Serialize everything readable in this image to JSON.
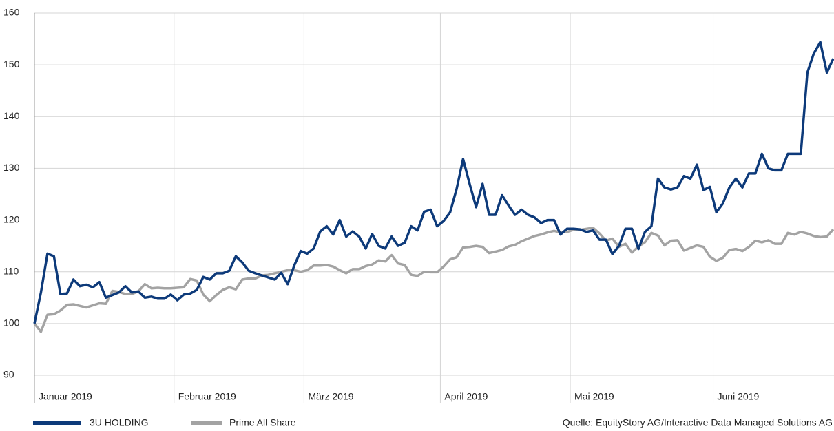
{
  "chart_data": {
    "type": "line",
    "categories": [
      "Januar 2019",
      null,
      null,
      null,
      null,
      null,
      null,
      null,
      null,
      null,
      null,
      null,
      null,
      null,
      null,
      null,
      null,
      null,
      null,
      null,
      null,
      null,
      "Februar 2019",
      null,
      null,
      null,
      null,
      null,
      null,
      null,
      null,
      null,
      null,
      null,
      null,
      null,
      null,
      null,
      null,
      null,
      null,
      null,
      "März 2019",
      null,
      null,
      null,
      null,
      null,
      null,
      null,
      null,
      null,
      null,
      null,
      null,
      null,
      null,
      null,
      null,
      null,
      null,
      null,
      null,
      "April 2019",
      null,
      null,
      null,
      null,
      null,
      null,
      null,
      null,
      null,
      null,
      null,
      null,
      null,
      null,
      null,
      null,
      null,
      null,
      null,
      "Mai 2019",
      null,
      null,
      null,
      null,
      null,
      null,
      null,
      null,
      null,
      null,
      null,
      null,
      null,
      null,
      null,
      null,
      null,
      null,
      null,
      null,
      null,
      "Juni 2019",
      null,
      null,
      null,
      null,
      null,
      null,
      null,
      null,
      null,
      null,
      null,
      null,
      null,
      null,
      null,
      null,
      null,
      null
    ],
    "series": [
      {
        "name": "3U HOLDING",
        "color": "#0d3a7a",
        "values": [
          100,
          106,
          113.5,
          113,
          105.7,
          105.8,
          108.5,
          107.2,
          107.5,
          107,
          108,
          105,
          105.5,
          106,
          107.2,
          106,
          106.2,
          105,
          105.2,
          104.8,
          104.8,
          105.6,
          104.5,
          105.6,
          105.8,
          106.5,
          109,
          108.5,
          109.7,
          109.7,
          110.2,
          113,
          111.8,
          110.2,
          109.7,
          109.3,
          108.9,
          108.5,
          109.8,
          107.6,
          111.2,
          114,
          113.5,
          114.5,
          117.8,
          118.8,
          117.2,
          120,
          116.8,
          117.8,
          116.8,
          114.5,
          117.3,
          115,
          114.5,
          116.8,
          115,
          115.6,
          118.8,
          118,
          121.6,
          122,
          118.8,
          119.8,
          121.5,
          126,
          131.8,
          127,
          122.5,
          127,
          121,
          121,
          124.8,
          122.8,
          121,
          122,
          121,
          120.5,
          119.4,
          120,
          120,
          117.2,
          118.3,
          118.3,
          118.2,
          117.7,
          118,
          116.2,
          116.2,
          113.4,
          115,
          118.3,
          118.3,
          114.4,
          117.7,
          118.8,
          128,
          126.3,
          125.9,
          126.3,
          128.5,
          128,
          130.7,
          125.8,
          126.4,
          121.5,
          123.2,
          126.3,
          128,
          126.3,
          129,
          129,
          132.8,
          130,
          129.6,
          129.6,
          132.8,
          132.8,
          132.8,
          148.5,
          152.2,
          154.4,
          148.5,
          151.2
        ]
      },
      {
        "name": "Prime All Share",
        "color": "#a3a3a3",
        "values": [
          100,
          98.4,
          101.7,
          101.8,
          102.5,
          103.6,
          103.7,
          103.4,
          103.1,
          103.5,
          103.9,
          103.8,
          106.3,
          106.1,
          105.7,
          105.7,
          106.2,
          107.6,
          106.8,
          106.9,
          106.8,
          106.8,
          106.9,
          107,
          108.6,
          108.3,
          105.6,
          104.3,
          105.5,
          106.5,
          107,
          106.6,
          108.5,
          108.7,
          108.7,
          109.3,
          109.4,
          109.7,
          110,
          110.3,
          110.3,
          110,
          110.3,
          111.2,
          111.2,
          111.3,
          111,
          110.3,
          109.7,
          110.5,
          110.5,
          111.1,
          111.4,
          112.2,
          112,
          113.2,
          111.6,
          111.3,
          109.4,
          109.2,
          110,
          109.9,
          109.9,
          111,
          112.4,
          112.8,
          114.7,
          114.8,
          115,
          114.8,
          113.6,
          113.9,
          114.2,
          114.9,
          115.2,
          115.9,
          116.4,
          116.9,
          117.2,
          117.6,
          117.9,
          117.6,
          117.7,
          118.1,
          118.1,
          118.3,
          118.5,
          117.4,
          116,
          116.4,
          114.8,
          115.4,
          113.7,
          114.9,
          115.7,
          117.5,
          117,
          115.1,
          116,
          116.1,
          114.1,
          114.6,
          115.1,
          114.8,
          112.9,
          112.1,
          112.7,
          114.2,
          114.4,
          114,
          114.8,
          116,
          115.7,
          116.1,
          115.4,
          115.4,
          117.5,
          117.2,
          117.7,
          117.4,
          116.9,
          116.7,
          116.8,
          118.2
        ]
      }
    ],
    "ylim": [
      88,
      160
    ],
    "yticks": [
      90,
      100,
      110,
      120,
      130,
      140,
      150,
      160
    ],
    "grid": true,
    "source": "Quelle: EquityStory AG/Interactive Data Managed Solutions AG"
  }
}
